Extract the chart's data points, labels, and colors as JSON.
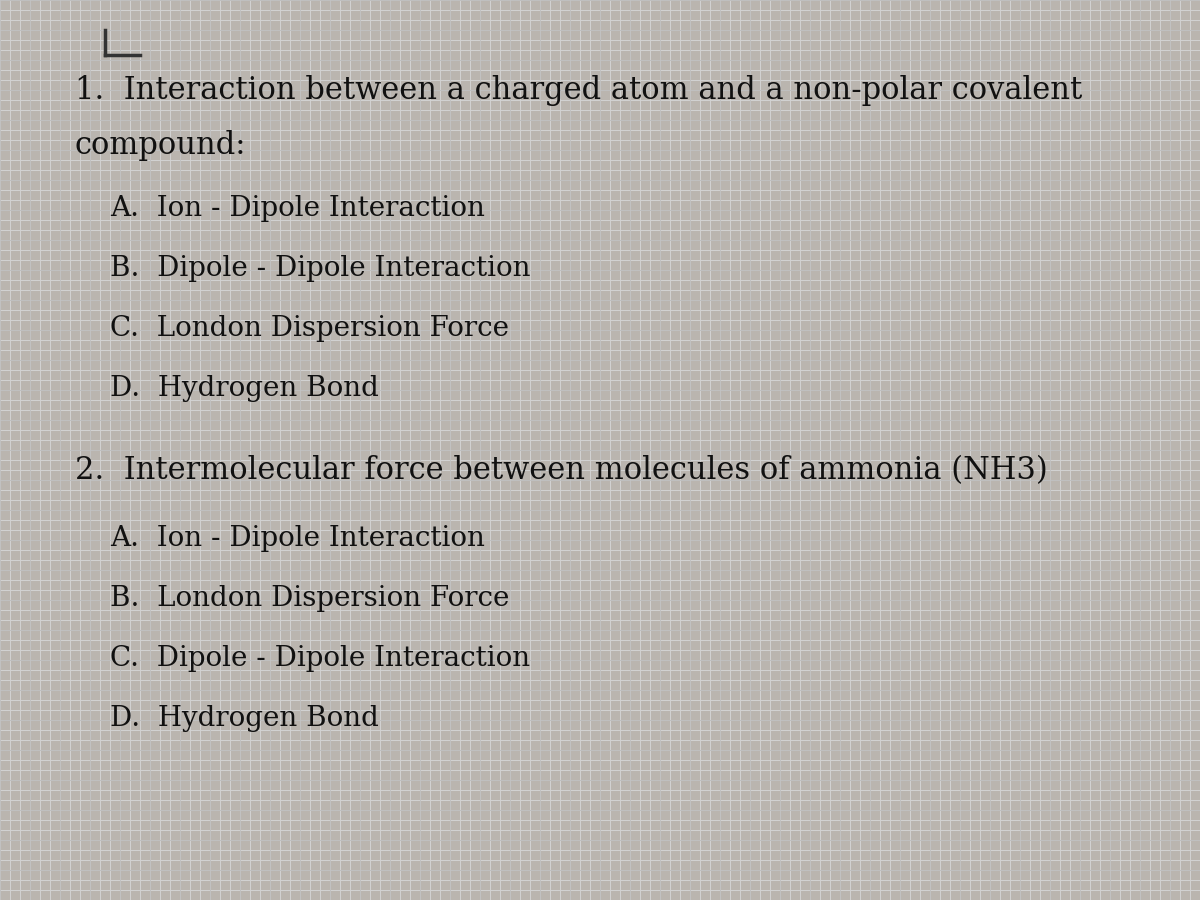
{
  "background_color_base": "#b8b4b0",
  "background_color_light": "#c8c4c0",
  "grid_color": "#d4d0cc",
  "text_color": "#111111",
  "q1_line1": "1.  Interaction between a charged atom and a non-polar covalent",
  "q1_line2": "compound:",
  "q1_options": [
    "A.  Ion - Dipole Interaction",
    "B.  Dipole - Dipole Interaction",
    "C.  London Dispersion Force",
    "D.  Hydrogen Bond"
  ],
  "q2_line1": "2.  Intermolecular force between molecules of ammonia (NH3)",
  "q2_options": [
    "A.  Ion - Dipole Interaction",
    "B.  London Dispersion Force",
    "C.  Dipole - Dipole Interaction",
    "D.  Hydrogen Bond"
  ],
  "font_size_question": 22,
  "font_size_option": 20,
  "font_family": "serif",
  "bracket_color": "#333333",
  "line_color": "#888888"
}
